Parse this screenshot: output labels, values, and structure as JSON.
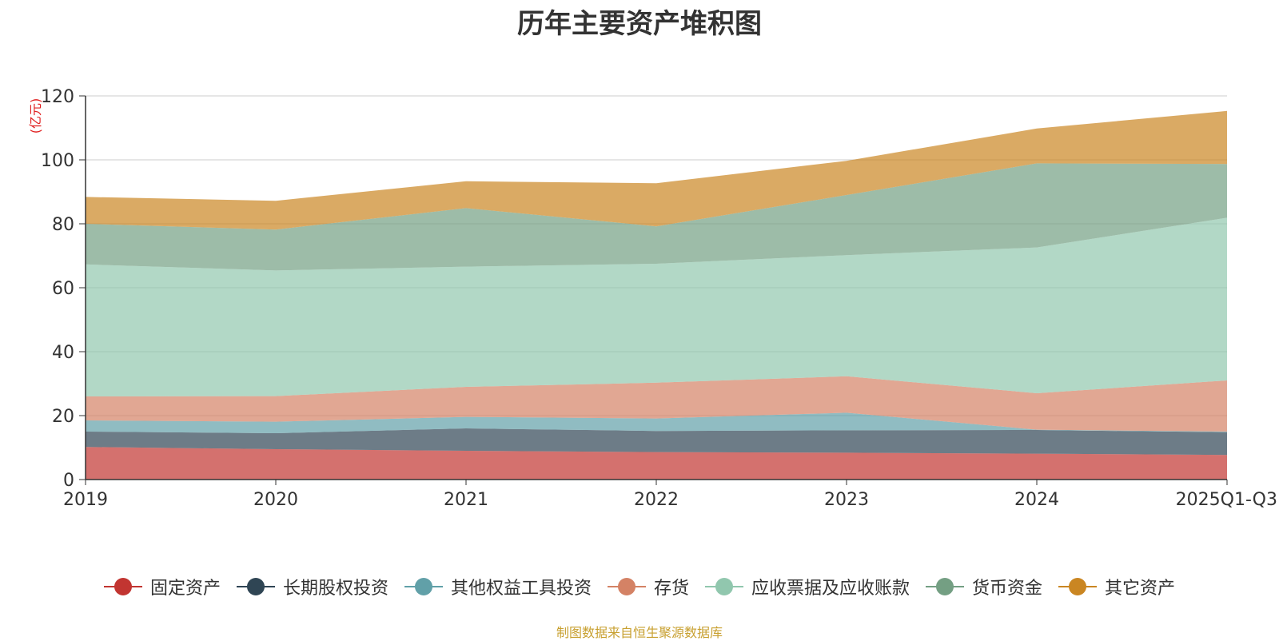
{
  "chart_data": {
    "type": "area",
    "stacked": true,
    "title": "历年主要资产堆积图",
    "ylabel": "(亿元)",
    "xlabel": "",
    "ylim": [
      0,
      120
    ],
    "yticks": [
      0,
      20,
      40,
      60,
      80,
      100,
      120
    ],
    "categories": [
      "2019",
      "2020",
      "2021",
      "2022",
      "2023",
      "2024",
      "2025Q1-Q3"
    ],
    "series": [
      {
        "name": "固定资产",
        "color": "#c23531",
        "values": [
          10.2,
          9.5,
          9.0,
          8.6,
          8.4,
          8.1,
          7.7
        ]
      },
      {
        "name": "长期股权投资",
        "color": "#2f4554",
        "values": [
          4.8,
          5.0,
          7.0,
          6.6,
          7.0,
          7.4,
          7.1
        ]
      },
      {
        "name": "其他权益工具投资",
        "color": "#61a0a8",
        "values": [
          3.5,
          3.6,
          3.6,
          3.9,
          5.5,
          0.1,
          0.2
        ]
      },
      {
        "name": "存货",
        "color": "#d48265",
        "values": [
          7.5,
          8.0,
          9.4,
          11.2,
          11.4,
          11.4,
          16.0
        ]
      },
      {
        "name": "应收票据及应收账款",
        "color": "#91c7ae",
        "values": [
          41.3,
          39.3,
          37.6,
          37.2,
          37.9,
          45.6,
          50.9
        ]
      },
      {
        "name": "货币资金",
        "color": "#749f83",
        "values": [
          12.7,
          12.8,
          18.3,
          11.7,
          18.8,
          26.3,
          16.8
        ]
      },
      {
        "name": "其它资产",
        "color": "#ca8622",
        "values": [
          8.4,
          9.0,
          8.4,
          13.5,
          10.7,
          10.9,
          16.6
        ]
      }
    ],
    "legend_position": "bottom-center",
    "source_note": "制图数据来自恒生聚源数据库"
  }
}
